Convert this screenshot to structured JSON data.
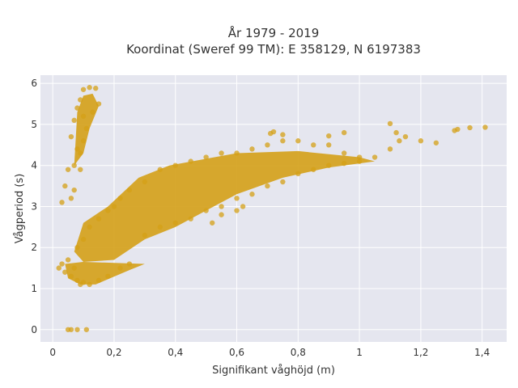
{
  "chart_data": {
    "type": "scatter",
    "title_line1": "År 1979 - 2019",
    "title_line2": "Koordinat (Sweref 99 TM): E 358129, N 6197383",
    "xlabel": "Signifikant våghöjd (m)",
    "ylabel": "Vågperiod (s)",
    "xlim": [
      -0.04,
      1.48
    ],
    "ylim": [
      -0.3,
      6.2
    ],
    "x_ticks": [
      0,
      0.2,
      0.4,
      0.6,
      0.8,
      1.0,
      1.2,
      1.4
    ],
    "x_tick_labels": [
      "0",
      "0,2",
      "0,4",
      "0,6",
      "0,8",
      "1",
      "1,2",
      "1,4"
    ],
    "y_ticks": [
      0,
      1,
      2,
      3,
      4,
      5,
      6
    ],
    "y_tick_labels": [
      "0",
      "1",
      "2",
      "3",
      "4",
      "5",
      "6"
    ],
    "grid": true,
    "legend": "none",
    "marker_color": "#D4A017",
    "plot_background": "#E5E6EF",
    "points": [
      [
        0.05,
        0.0
      ],
      [
        0.06,
        0.0
      ],
      [
        0.08,
        0.0
      ],
      [
        0.11,
        0.0
      ],
      [
        0.02,
        1.5
      ],
      [
        0.03,
        1.6
      ],
      [
        0.04,
        1.4
      ],
      [
        0.05,
        1.7
      ],
      [
        0.06,
        1.3
      ],
      [
        0.07,
        1.5
      ],
      [
        0.08,
        1.2
      ],
      [
        0.09,
        1.1
      ],
      [
        0.1,
        1.15
      ],
      [
        0.12,
        1.1
      ],
      [
        0.15,
        1.2
      ],
      [
        0.18,
        1.3
      ],
      [
        0.22,
        1.5
      ],
      [
        0.25,
        1.6
      ],
      [
        0.08,
        2.0
      ],
      [
        0.1,
        2.2
      ],
      [
        0.12,
        2.5
      ],
      [
        0.15,
        2.7
      ],
      [
        0.18,
        2.9
      ],
      [
        0.2,
        3.0
      ],
      [
        0.22,
        3.2
      ],
      [
        0.25,
        3.4
      ],
      [
        0.3,
        3.6
      ],
      [
        0.35,
        3.9
      ],
      [
        0.4,
        4.0
      ],
      [
        0.45,
        4.1
      ],
      [
        0.5,
        4.2
      ],
      [
        0.55,
        4.3
      ],
      [
        0.6,
        4.3
      ],
      [
        0.65,
        4.4
      ],
      [
        0.7,
        4.5
      ],
      [
        0.75,
        4.6
      ],
      [
        0.8,
        4.6
      ],
      [
        0.85,
        4.5
      ],
      [
        0.9,
        4.5
      ],
      [
        0.95,
        4.3
      ],
      [
        1.0,
        4.2
      ],
      [
        0.3,
        2.3
      ],
      [
        0.35,
        2.5
      ],
      [
        0.4,
        2.6
      ],
      [
        0.45,
        2.7
      ],
      [
        0.5,
        2.9
      ],
      [
        0.55,
        3.0
      ],
      [
        0.6,
        3.2
      ],
      [
        0.65,
        3.3
      ],
      [
        0.7,
        3.5
      ],
      [
        0.75,
        3.6
      ],
      [
        0.8,
        3.8
      ],
      [
        0.85,
        3.9
      ],
      [
        0.9,
        4.0
      ],
      [
        0.95,
        4.05
      ],
      [
        1.0,
        4.1
      ],
      [
        1.05,
        4.2
      ],
      [
        1.1,
        4.4
      ],
      [
        1.13,
        4.6
      ],
      [
        1.15,
        4.7
      ],
      [
        1.1,
        5.02
      ],
      [
        1.12,
        4.8
      ],
      [
        1.2,
        4.6
      ],
      [
        1.25,
        4.55
      ],
      [
        1.31,
        4.85
      ],
      [
        1.32,
        4.88
      ],
      [
        1.36,
        4.92
      ],
      [
        1.41,
        4.93
      ],
      [
        0.71,
        4.78
      ],
      [
        0.72,
        4.82
      ],
      [
        0.75,
        4.75
      ],
      [
        0.9,
        4.72
      ],
      [
        0.95,
        4.8
      ],
      [
        0.05,
        3.9
      ],
      [
        0.04,
        3.5
      ],
      [
        0.03,
        3.1
      ],
      [
        0.07,
        3.4
      ],
      [
        0.06,
        4.7
      ],
      [
        0.07,
        5.1
      ],
      [
        0.08,
        5.4
      ],
      [
        0.09,
        5.6
      ],
      [
        0.1,
        5.85
      ],
      [
        0.12,
        5.9
      ],
      [
        0.14,
        5.88
      ],
      [
        0.13,
        5.3
      ],
      [
        0.11,
        4.9
      ],
      [
        0.09,
        4.3
      ],
      [
        0.08,
        4.4
      ],
      [
        0.1,
        4.6
      ],
      [
        0.07,
        4.0
      ],
      [
        0.09,
        3.9
      ],
      [
        0.1,
        5.2
      ],
      [
        0.15,
        5.5
      ],
      [
        0.06,
        3.2
      ],
      [
        0.55,
        2.8
      ],
      [
        0.6,
        2.9
      ],
      [
        0.62,
        3.0
      ],
      [
        0.52,
        2.6
      ]
    ]
  }
}
